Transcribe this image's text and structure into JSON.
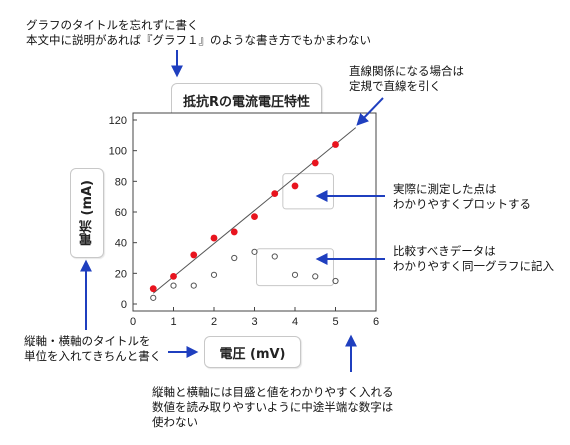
{
  "annotations": {
    "title_tip": [
      "グラフのタイトルを忘れずに書く",
      "本文中に説明があれば『グラフ１』のような書き方でもかまわない"
    ],
    "linear_tip": [
      "直線関係になる場合は",
      "定規で直線を引く"
    ],
    "measured_tip": [
      "実際に測定した点は",
      "わかりやすくプロットする"
    ],
    "compare_tip": [
      "比較すべきデータは",
      "わかりやすく同一グラフに記入"
    ],
    "axis_title_tip": [
      "縦軸・横軸のタイトルを",
      "単位を入れてきちんと書く"
    ],
    "tick_tip": [
      "縦軸と横軸には目盛と値をわかりやすく入れる",
      "数値を読み取りやすいように中途半端な数字は",
      "使わない"
    ]
  },
  "colors": {
    "arrow": "#1f3fbf",
    "measured": "#e8141e",
    "comparison": "#555555",
    "fit_line": "#555555",
    "highlight_box": "#c8c8c8"
  },
  "chart_data": {
    "type": "scatter",
    "title": "抵抗Rの電流電圧特性",
    "xlabel": "電圧 (mV)",
    "ylabel": "電流 (mA)",
    "xlim": [
      0,
      6
    ],
    "ylim": [
      0,
      120
    ],
    "x_ticks": [
      "0",
      "1",
      "2",
      "3",
      "4",
      "5",
      "6"
    ],
    "y_ticks": [
      "0",
      "20",
      "40",
      "60",
      "80",
      "100",
      "120"
    ],
    "grid": false,
    "series": [
      {
        "marker": "filled-red-circle",
        "x": [
          0.5,
          1.0,
          1.5,
          2.0,
          2.5,
          3.0,
          3.5,
          4.0,
          4.5,
          5.0
        ],
        "y": [
          10,
          18,
          32,
          43,
          47,
          57,
          72,
          77,
          92,
          104
        ]
      },
      {
        "marker": "open-gray-circle",
        "x": [
          0.5,
          1.0,
          1.5,
          2.0,
          2.5,
          3.0,
          3.5,
          4.0,
          4.5,
          5.0
        ],
        "y": [
          4,
          12,
          12,
          19,
          30,
          34,
          31,
          19,
          18,
          15
        ]
      }
    ],
    "fit_line": {
      "x": [
        0.5,
        5.5
      ],
      "y": [
        7,
        115
      ]
    },
    "highlights": [
      {
        "x": [
          3.7,
          4.95
        ],
        "y": [
          62,
          85
        ]
      },
      {
        "x": [
          3.05,
          4.95
        ],
        "y": [
          12,
          36
        ]
      }
    ]
  }
}
